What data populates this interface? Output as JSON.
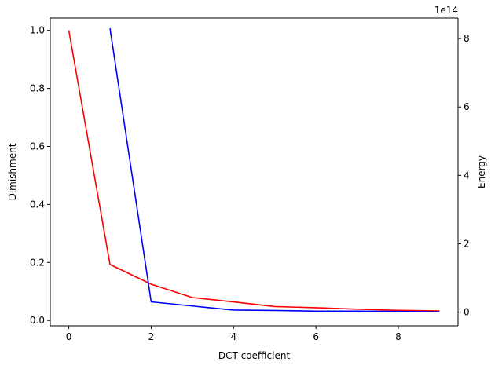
{
  "chart_data": {
    "type": "line",
    "title": "",
    "xlabel": "DCT coefficient",
    "ylabel_left": "Dimishment",
    "ylabel_right": "Energy",
    "right_axis_offset_text": "1e14",
    "xlim": [
      -0.45,
      9.45
    ],
    "xticks": [
      0,
      2,
      4,
      6,
      8
    ],
    "ylim_left": [
      -0.0184,
      1.0424
    ],
    "yticks_left": [
      0.0,
      0.2,
      0.4,
      0.6,
      0.8,
      1.0
    ],
    "ytick_labels_left": [
      "0.0",
      "0.2",
      "0.4",
      "0.6",
      "0.8",
      "1.0"
    ],
    "ylim_right": [
      -0.4,
      8.6
    ],
    "yticks_right": [
      0,
      2,
      4,
      6,
      8
    ],
    "ytick_labels_right": [
      "0",
      "2",
      "4",
      "6",
      "8"
    ],
    "grid": false,
    "legend": "none",
    "series": [
      {
        "axis": "left",
        "color": "#ff0000",
        "x": [
          0,
          1,
          2,
          3,
          4,
          5,
          6,
          7,
          8,
          9
        ],
        "values": [
          1.0,
          0.193,
          0.125,
          0.079,
          0.064,
          0.048,
          0.044,
          0.039,
          0.035,
          0.033
        ]
      },
      {
        "axis": "right",
        "color": "#0000ff",
        "x": [
          1,
          2,
          3,
          4,
          5,
          6,
          7,
          8,
          9
        ],
        "values": [
          8.3,
          0.3,
          0.18,
          0.06,
          0.05,
          0.03,
          0.03,
          0.02,
          0.01
        ]
      }
    ]
  }
}
